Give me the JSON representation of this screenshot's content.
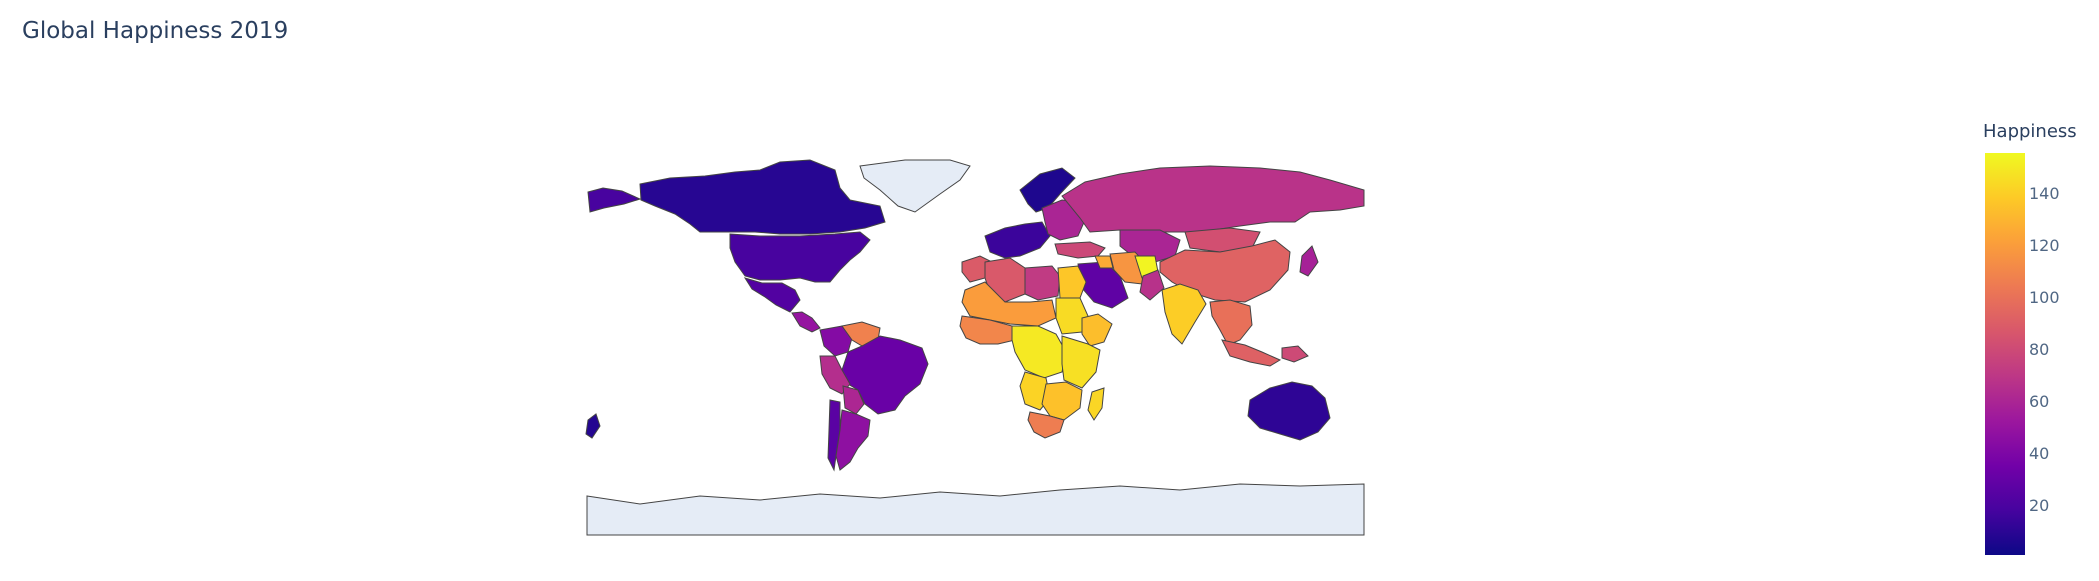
{
  "chart_data": {
    "type": "choropleth",
    "title": "Global Happiness 2019",
    "colorbar": {
      "title": "Happiness",
      "range": [
        1,
        156
      ],
      "ticks": [
        20,
        40,
        60,
        80,
        100,
        120,
        140
      ],
      "colorscale": [
        "#0d0887",
        "#46039f",
        "#7201a8",
        "#9c179e",
        "#bd3786",
        "#d8576b",
        "#ed7953",
        "#fb9f3a",
        "#fdca26",
        "#f0f921"
      ]
    },
    "regions": [
      {
        "name": "Canada",
        "value": 9
      },
      {
        "name": "United States",
        "value": 19
      },
      {
        "name": "Alaska (United States)",
        "value": 19
      },
      {
        "name": "Mexico",
        "value": 23
      },
      {
        "name": "Central America",
        "value": 50
      },
      {
        "name": "Colombia",
        "value": 43
      },
      {
        "name": "Venezuela",
        "value": 108
      },
      {
        "name": "Brazil",
        "value": 32
      },
      {
        "name": "Peru",
        "value": 65
      },
      {
        "name": "Bolivia",
        "value": 61
      },
      {
        "name": "Chile",
        "value": 26
      },
      {
        "name": "Argentina",
        "value": 47
      },
      {
        "name": "Scandinavia",
        "value": 6
      },
      {
        "name": "Western Europe",
        "value": 15
      },
      {
        "name": "Eastern Europe",
        "value": 60
      },
      {
        "name": "Russia",
        "value": 68
      },
      {
        "name": "Turkey",
        "value": 79
      },
      {
        "name": "Kazakhstan",
        "value": 60
      },
      {
        "name": "Mongolia",
        "value": 83
      },
      {
        "name": "China",
        "value": 93
      },
      {
        "name": "Japan",
        "value": 58
      },
      {
        "name": "Saudi Arabia",
        "value": 28
      },
      {
        "name": "Iran",
        "value": 117
      },
      {
        "name": "Iraq",
        "value": 126
      },
      {
        "name": "Afghanistan",
        "value": 154
      },
      {
        "name": "Pakistan",
        "value": 67
      },
      {
        "name": "India",
        "value": 140
      },
      {
        "name": "Southeast Asia",
        "value": 100
      },
      {
        "name": "Indonesia",
        "value": 92
      },
      {
        "name": "Papua New Guinea",
        "value": 80
      },
      {
        "name": "Morocco",
        "value": 89
      },
      {
        "name": "Algeria",
        "value": 88
      },
      {
        "name": "Libya",
        "value": 72
      },
      {
        "name": "Egypt",
        "value": 137
      },
      {
        "name": "Sahel",
        "value": 120
      },
      {
        "name": "West Africa",
        "value": 110
      },
      {
        "name": "Sudan",
        "value": 145
      },
      {
        "name": "Ethiopia",
        "value": 134
      },
      {
        "name": "Central Africa",
        "value": 150
      },
      {
        "name": "East Africa",
        "value": 147
      },
      {
        "name": "Angola",
        "value": 142
      },
      {
        "name": "Southern Africa",
        "value": 135
      },
      {
        "name": "South Africa",
        "value": 106
      },
      {
        "name": "Madagascar",
        "value": 143
      },
      {
        "name": "Australia",
        "value": 11
      },
      {
        "name": "New Zealand",
        "value": 8
      },
      {
        "name": "Greenland",
        "value": null
      },
      {
        "name": "Antarctica",
        "value": null
      }
    ]
  }
}
